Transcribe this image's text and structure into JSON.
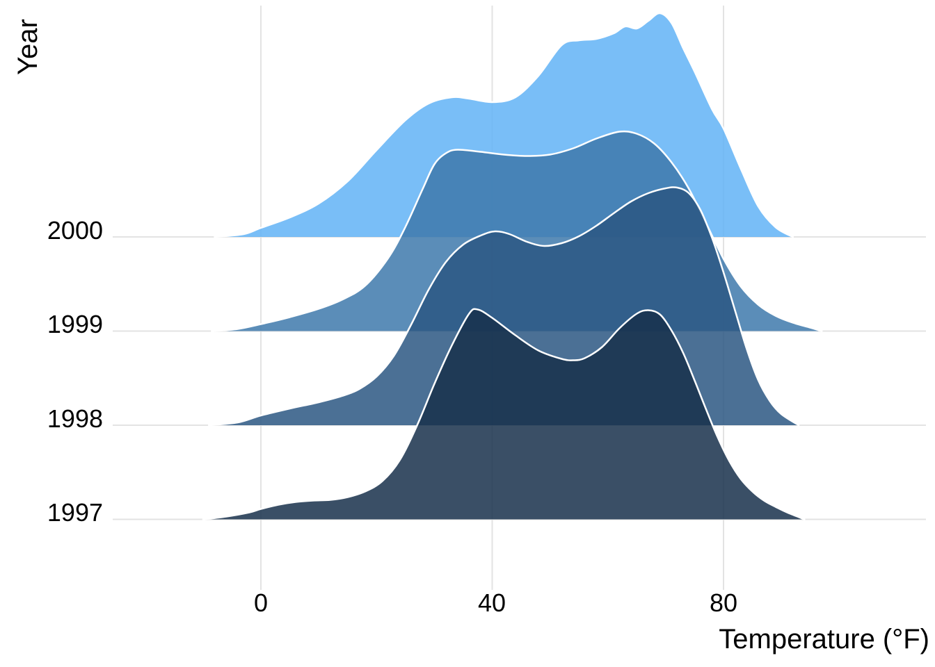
{
  "figure": {
    "y_axis_title": "Year",
    "x_axis_title": "Temperature (°F)",
    "y_tick_labels": [
      "2000",
      "1999",
      "1998",
      "1997"
    ],
    "x_tick_labels": [
      "0",
      "40",
      "80"
    ]
  },
  "chart_data": {
    "type": "area",
    "variant": "ridgeline-density (joyplot), overlapping stacked density curves per year",
    "title": "",
    "xlabel": "Temperature (°F)",
    "ylabel": "Year",
    "x_ticks": [
      0,
      40,
      80
    ],
    "x_range": [
      -25,
      115
    ],
    "rows_top_to_bottom": [
      "2000",
      "1999",
      "1998",
      "1997"
    ],
    "grid": "major-only",
    "legend": "none",
    "background": "#FFFFFF",
    "gridline_color": "#E3E3E3",
    "outline_color": "#FFFFFF",
    "fill_alpha": 0.85,
    "density_units": "rendered pixel height above each year's baseline",
    "series": [
      {
        "name": "2000",
        "row": 0,
        "color": "#62B3F6",
        "points": [
          [
            -8,
            0
          ],
          [
            -3,
            4
          ],
          [
            0,
            13
          ],
          [
            5,
            28
          ],
          [
            10,
            48
          ],
          [
            15,
            80
          ],
          [
            20,
            125
          ],
          [
            25,
            168
          ],
          [
            29,
            192
          ],
          [
            33,
            201
          ],
          [
            36,
            199
          ],
          [
            40,
            194
          ],
          [
            44,
            201
          ],
          [
            48,
            232
          ],
          [
            52,
            276
          ],
          [
            55,
            283
          ],
          [
            58,
            285
          ],
          [
            61,
            293
          ],
          [
            63,
            303
          ],
          [
            65,
            300
          ],
          [
            67,
            311
          ],
          [
            69,
            322
          ],
          [
            71,
            308
          ],
          [
            73,
            272
          ],
          [
            75,
            238
          ],
          [
            78,
            184
          ],
          [
            80,
            156
          ],
          [
            83,
            98
          ],
          [
            86,
            44
          ],
          [
            89,
            14
          ],
          [
            92,
            0
          ]
        ]
      },
      {
        "name": "1999",
        "row": 1,
        "color": "#3E79AB",
        "points": [
          [
            -8.5,
            0
          ],
          [
            -4,
            3
          ],
          [
            0,
            10
          ],
          [
            5,
            20
          ],
          [
            10,
            32
          ],
          [
            14,
            45
          ],
          [
            18,
            65
          ],
          [
            22,
            105
          ],
          [
            25,
            150
          ],
          [
            28,
            205
          ],
          [
            30,
            240
          ],
          [
            32,
            256
          ],
          [
            34,
            261
          ],
          [
            38,
            258
          ],
          [
            42,
            254
          ],
          [
            46,
            252
          ],
          [
            50,
            254
          ],
          [
            54,
            263
          ],
          [
            58,
            277
          ],
          [
            62,
            287
          ],
          [
            65,
            284
          ],
          [
            68,
            270
          ],
          [
            71,
            243
          ],
          [
            74,
            205
          ],
          [
            77,
            155
          ],
          [
            80,
            104
          ],
          [
            83,
            64
          ],
          [
            86,
            38
          ],
          [
            89,
            22
          ],
          [
            92,
            12
          ],
          [
            95,
            5
          ],
          [
            97,
            0
          ]
        ]
      },
      {
        "name": "1998",
        "row": 2,
        "color": "#2B5782",
        "points": [
          [
            -9,
            0
          ],
          [
            -4,
            4
          ],
          [
            0,
            14
          ],
          [
            5,
            24
          ],
          [
            10,
            33
          ],
          [
            14,
            42
          ],
          [
            17,
            52
          ],
          [
            20,
            70
          ],
          [
            23,
            100
          ],
          [
            26,
            145
          ],
          [
            29,
            195
          ],
          [
            32,
            235
          ],
          [
            35,
            260
          ],
          [
            38,
            273
          ],
          [
            40.5,
            279
          ],
          [
            43,
            275
          ],
          [
            46,
            264
          ],
          [
            49,
            258
          ],
          [
            52,
            262
          ],
          [
            55,
            272
          ],
          [
            58,
            287
          ],
          [
            61,
            305
          ],
          [
            64,
            322
          ],
          [
            67,
            334
          ],
          [
            70,
            341
          ],
          [
            72,
            342
          ],
          [
            74,
            334
          ],
          [
            76,
            310
          ],
          [
            78,
            270
          ],
          [
            80,
            220
          ],
          [
            82,
            165
          ],
          [
            84,
            110
          ],
          [
            86,
            65
          ],
          [
            88,
            35
          ],
          [
            90,
            16
          ],
          [
            93,
            0
          ]
        ]
      },
      {
        "name": "1997",
        "row": 3,
        "color": "#17304B",
        "points": [
          [
            -10,
            0
          ],
          [
            -6,
            4
          ],
          [
            -2,
            10
          ],
          [
            0,
            15
          ],
          [
            3,
            21
          ],
          [
            6,
            25
          ],
          [
            9,
            27
          ],
          [
            12,
            28
          ],
          [
            15,
            32
          ],
          [
            18,
            40
          ],
          [
            21,
            55
          ],
          [
            24,
            85
          ],
          [
            27,
            135
          ],
          [
            30,
            195
          ],
          [
            33,
            250
          ],
          [
            36,
            296
          ],
          [
            37.5,
            302
          ],
          [
            40,
            290
          ],
          [
            44,
            265
          ],
          [
            48,
            243
          ],
          [
            52,
            231
          ],
          [
            54,
            229
          ],
          [
            56,
            232
          ],
          [
            59,
            248
          ],
          [
            62,
            275
          ],
          [
            65,
            296
          ],
          [
            67,
            301
          ],
          [
            69,
            295
          ],
          [
            71,
            272
          ],
          [
            73,
            240
          ],
          [
            75,
            200
          ],
          [
            77,
            158
          ],
          [
            79,
            118
          ],
          [
            81,
            84
          ],
          [
            83,
            58
          ],
          [
            85,
            40
          ],
          [
            87,
            27
          ],
          [
            89,
            18
          ],
          [
            91,
            10
          ],
          [
            94,
            0
          ]
        ]
      }
    ]
  }
}
